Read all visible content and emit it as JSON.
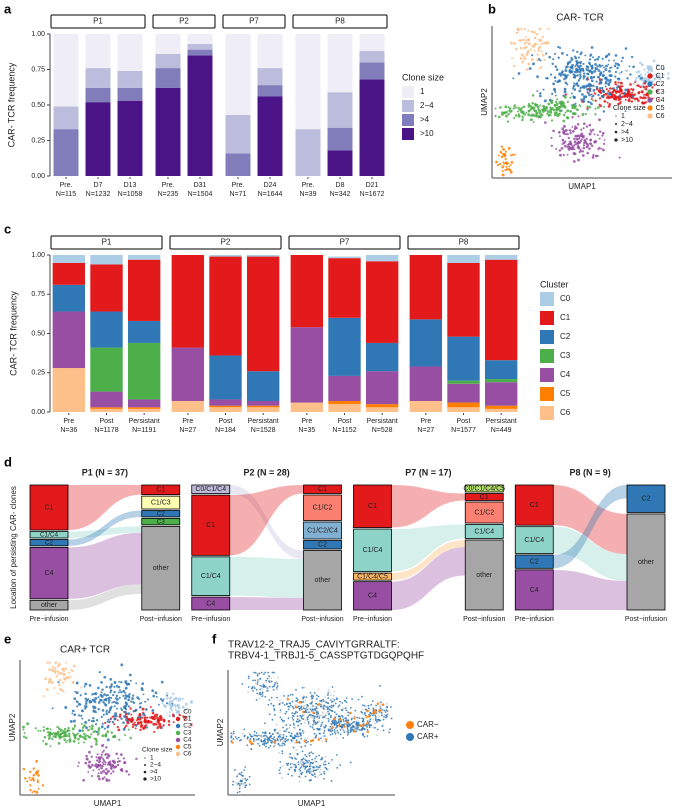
{
  "chart_data": [
    {
      "type": "faceted-stacked-bar",
      "label": "a",
      "ylabel": "CAR- TCR frequency",
      "ylim": [
        0,
        1
      ],
      "yticks": [
        {
          "value": 0,
          "label": "0.00"
        },
        {
          "value": 0.25,
          "label": "0.25"
        },
        {
          "value": 0.5,
          "label": "0.50"
        },
        {
          "value": 0.75,
          "label": "0.75"
        },
        {
          "value": 1,
          "label": "1.00"
        }
      ],
      "legend": {
        "title": "Clone size",
        "series": [
          {
            "name": "1",
            "color": "#efedf5"
          },
          {
            "name": "2−4",
            "color": "#bcbddc"
          },
          {
            "name": ">4",
            "color": "#807dba"
          },
          {
            "name": ">10",
            "color": "#4a1486"
          }
        ]
      },
      "facets": [
        {
          "name": "P1",
          "categories": [
            "Pre.",
            "D7",
            "D13"
          ],
          "n_labels": [
            "N=115",
            "N=1232",
            "N=1058"
          ],
          "values": [
            [
              0.51,
              0.24,
              0.26
            ],
            [
              0.16,
              0.14,
              0.12
            ],
            [
              0.33,
              0.1,
              0.09
            ],
            [
              0,
              0.52,
              0.53
            ]
          ]
        },
        {
          "name": "P2",
          "categories": [
            "Pre.",
            "D31"
          ],
          "n_labels": [
            "N=235",
            "N=1504"
          ],
          "values": [
            [
              0.14,
              0.07
            ],
            [
              0.1,
              0.04
            ],
            [
              0.14,
              0.04
            ],
            [
              0.62,
              0.85
            ]
          ]
        },
        {
          "name": "P7",
          "categories": [
            "Pre.",
            "D24"
          ],
          "n_labels": [
            "N=71",
            "N=1644"
          ],
          "values": [
            [
              0.57,
              0.24
            ],
            [
              0.27,
              0.12
            ],
            [
              0.16,
              0.08
            ],
            [
              0,
              0.56
            ]
          ]
        },
        {
          "name": "P8",
          "categories": [
            "Pre.",
            "D8",
            "D21"
          ],
          "n_labels": [
            "N=39",
            "N=342",
            "N=1672"
          ],
          "values": [
            [
              0.67,
              0.41,
              0.12
            ],
            [
              0.33,
              0.25,
              0.08
            ],
            [
              0,
              0.16,
              0.12
            ],
            [
              0,
              0.18,
              0.68
            ]
          ]
        }
      ]
    },
    {
      "type": "embedding",
      "label": "b",
      "title": "CAR- TCR",
      "xlabel": "UMAP1",
      "ylabel": "UMAP2",
      "legend": {
        "series": [
          {
            "name": "C0",
            "color": "#abcde5"
          },
          {
            "name": "C1",
            "color": "#e31a1c"
          },
          {
            "name": "C2",
            "color": "#2f78b5"
          },
          {
            "name": "C3",
            "color": "#4daf4a"
          },
          {
            "name": "C4",
            "color": "#984ea3"
          },
          {
            "name": "C5",
            "color": "#ff7f00"
          },
          {
            "name": "C6",
            "color": "#fdc08a"
          }
        ]
      },
      "size_legend": {
        "title": "Clone size",
        "labels": [
          "1",
          "2−4",
          ">4",
          ">10"
        ]
      }
    },
    {
      "type": "faceted-stacked-bar",
      "label": "c",
      "ylabel": "CAR- TCR frequency",
      "ylim": [
        0,
        1
      ],
      "yticks": [
        {
          "value": 0,
          "label": "0.00"
        },
        {
          "value": 0.25,
          "label": "0.25"
        },
        {
          "value": 0.5,
          "label": "0.50"
        },
        {
          "value": 0.75,
          "label": "0.75"
        },
        {
          "value": 1,
          "label": "1.00"
        }
      ],
      "legend": {
        "title": "Cluster",
        "series": [
          {
            "name": "C0",
            "color": "#abcde5"
          },
          {
            "name": "C1",
            "color": "#e31a1c"
          },
          {
            "name": "C2",
            "color": "#2f78b5"
          },
          {
            "name": "C3",
            "color": "#4daf4a"
          },
          {
            "name": "C4",
            "color": "#984ea3"
          },
          {
            "name": "C5",
            "color": "#ff7f00"
          },
          {
            "name": "C6",
            "color": "#fdc08a"
          }
        ]
      },
      "facets": [
        {
          "name": "P1",
          "categories": [
            "Pre",
            "Post",
            "Persistant"
          ],
          "n_labels": [
            "N=36",
            "N=1178",
            "N=1191"
          ],
          "values": [
            [
              0.05,
              0.06,
              0.03
            ],
            [
              0.14,
              0.3,
              0.39
            ],
            [
              0.17,
              0.23,
              0.14
            ],
            [
              0,
              0.28,
              0.36
            ],
            [
              0.36,
              0.1,
              0.05
            ],
            [
              0,
              0.01,
              0.01
            ],
            [
              0.28,
              0.02,
              0.02
            ]
          ]
        },
        {
          "name": "P2",
          "categories": [
            "Pre",
            "Post",
            "Persistant"
          ],
          "n_labels": [
            "N=27",
            "N=184",
            "N=1528"
          ],
          "values": [
            [
              0,
              0.01,
              0.01
            ],
            [
              0.59,
              0.63,
              0.73
            ],
            [
              0,
              0.28,
              0.19
            ],
            [
              0,
              0,
              0
            ],
            [
              0.34,
              0.04,
              0.03
            ],
            [
              0,
              0.01,
              0.01
            ],
            [
              0.07,
              0.03,
              0.03
            ]
          ]
        },
        {
          "name": "P7",
          "categories": [
            "Pre",
            "Post",
            "Persistant"
          ],
          "n_labels": [
            "N=35",
            "N=1152",
            "N=528"
          ],
          "values": [
            [
              0,
              0.01,
              0.04
            ],
            [
              0.46,
              0.38,
              0.52
            ],
            [
              0,
              0.37,
              0.18
            ],
            [
              0,
              0,
              0
            ],
            [
              0.48,
              0.16,
              0.21
            ],
            [
              0,
              0.02,
              0.02
            ],
            [
              0.06,
              0.05,
              0.03
            ]
          ]
        },
        {
          "name": "P8",
          "categories": [
            "Pre",
            "Post",
            "Persistant"
          ],
          "n_labels": [
            "N=27",
            "N=1577",
            "N=449"
          ],
          "values": [
            [
              0,
              0.05,
              0.03
            ],
            [
              0.41,
              0.47,
              0.64
            ],
            [
              0.3,
              0.28,
              0.12
            ],
            [
              0,
              0.02,
              0.02
            ],
            [
              0.22,
              0.12,
              0.15
            ],
            [
              0,
              0.03,
              0.02
            ],
            [
              0.07,
              0.03,
              0.02
            ]
          ]
        }
      ]
    },
    {
      "type": "alluvial",
      "label": "d",
      "ylabel": "Location of persisting CAR- clones",
      "xlabels": [
        "Pre−infusion",
        "Post−infusion"
      ],
      "facets": [
        {
          "title": "P1 (N = 37)",
          "left": [
            {
              "label": "C1",
              "color": "#e31a1c",
              "count": 14
            },
            {
              "label": "C1/C4",
              "color": "#8dd3c7",
              "count": 2
            },
            {
              "label": "C2",
              "color": "#2f78b5",
              "count": 2
            },
            {
              "label": "C4",
              "color": "#984ea3",
              "count": 16
            },
            {
              "label": "other",
              "color": "#a6a6a6",
              "count": 3
            }
          ],
          "right": [
            {
              "label": "C1",
              "color": "#e31a1c",
              "count": 3
            },
            {
              "label": "C1/C3",
              "color": "#ffffb3",
              "count": 4
            },
            {
              "label": "C2",
              "color": "#2f78b5",
              "count": 2
            },
            {
              "label": "C3",
              "color": "#4daf4a",
              "count": 2
            },
            {
              "label": "other",
              "color": "#a6a6a6",
              "count": 26
            }
          ]
        },
        {
          "title": "P2 (N = 28)",
          "left": [
            {
              "label": "C0/C1/C4",
              "color": "#bebada",
              "count": 2
            },
            {
              "label": "C1",
              "color": "#e31a1c",
              "count": 14
            },
            {
              "label": "C1/C4",
              "color": "#8dd3c7",
              "count": 9
            },
            {
              "label": "C4",
              "color": "#984ea3",
              "count": 3
            }
          ],
          "right": [
            {
              "label": "C1",
              "color": "#e31a1c",
              "count": 2
            },
            {
              "label": "C1/C2",
              "color": "#fb8072",
              "count": 6
            },
            {
              "label": "C1/C2/C4",
              "color": "#80b1d3",
              "count": 4
            },
            {
              "label": "C2",
              "color": "#2f78b5",
              "count": 2
            },
            {
              "label": "other",
              "color": "#a6a6a6",
              "count": 14
            }
          ]
        },
        {
          "title": "P7 (N = 17)",
          "left": [
            {
              "label": "C1",
              "color": "#e31a1c",
              "count": 6
            },
            {
              "label": "C1/C4",
              "color": "#8dd3c7",
              "count": 6
            },
            {
              "label": "C1/C4/C5",
              "color": "#fdb462",
              "count": 1
            },
            {
              "label": "C4",
              "color": "#984ea3",
              "count": 4
            }
          ],
          "right": [
            {
              "label": "C0/C1/C4/C5",
              "color": "#b3de69",
              "count": 1
            },
            {
              "label": "C1",
              "color": "#e31a1c",
              "count": 1
            },
            {
              "label": "C1/C2",
              "color": "#fb8072",
              "count": 3
            },
            {
              "label": "C1/C4",
              "color": "#8dd3c7",
              "count": 2
            },
            {
              "label": "other",
              "color": "#a6a6a6",
              "count": 10
            }
          ]
        },
        {
          "title": "P8 (N = 9)",
          "left": [
            {
              "label": "C1",
              "color": "#e31a1c",
              "count": 3
            },
            {
              "label": "C1/C4",
              "color": "#8dd3c7",
              "count": 2
            },
            {
              "label": "C2",
              "color": "#2f78b5",
              "count": 1
            },
            {
              "label": "C4",
              "color": "#984ea3",
              "count": 3
            }
          ],
          "right": [
            {
              "label": "C2",
              "color": "#2f78b5",
              "count": 2
            },
            {
              "label": "other",
              "color": "#a6a6a6",
              "count": 7
            }
          ]
        }
      ]
    },
    {
      "type": "embedding",
      "label": "e",
      "title": "CAR+ TCR",
      "xlabel": "UMAP1",
      "ylabel": "UMAP2",
      "legend": {
        "series": [
          {
            "name": "C0",
            "color": "#abcde5"
          },
          {
            "name": "C1",
            "color": "#e31a1c"
          },
          {
            "name": "C2",
            "color": "#2f78b5"
          },
          {
            "name": "C3",
            "color": "#4daf4a"
          },
          {
            "name": "C4",
            "color": "#984ea3"
          },
          {
            "name": "C5",
            "color": "#ff7f00"
          },
          {
            "name": "C6",
            "color": "#fdc08a"
          }
        ]
      },
      "size_legend": {
        "title": "Clone size",
        "labels": [
          "1",
          "2−4",
          ">4",
          ">10"
        ]
      }
    },
    {
      "type": "embedding",
      "label": "f",
      "title": [
        "TRAV12-2_TRAJ5_CAVIYTGRRALTF:",
        "TRBV4-1_TRBJ1-5_CASSPTGTDGQPQHF"
      ],
      "xlabel": "UMAP1",
      "ylabel": "UMAP2",
      "legend": {
        "series": [
          {
            "name": "CAR−",
            "color": "#ff7f0e"
          },
          {
            "name": "CAR+",
            "color": "#2f78b5"
          }
        ]
      }
    }
  ]
}
